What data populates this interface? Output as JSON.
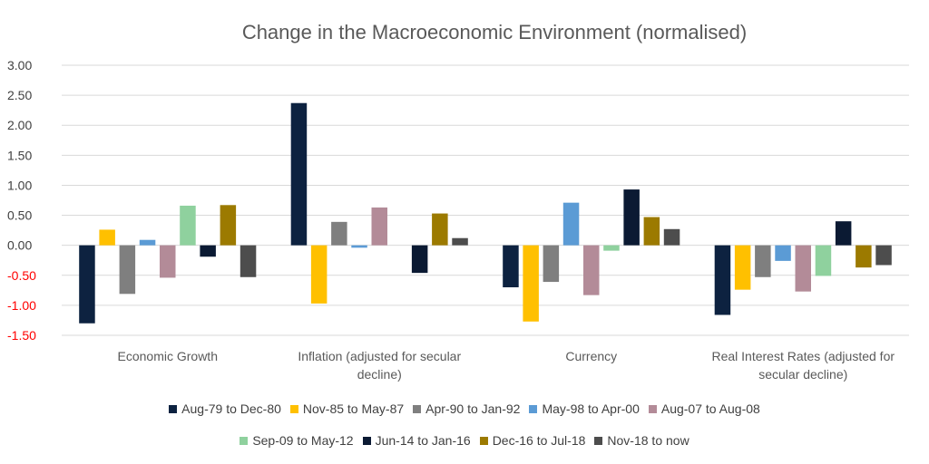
{
  "chart_data": {
    "type": "bar",
    "title": "Change in the Macroeconomic Environment (normalised)",
    "categories": [
      [
        "Economic Growth"
      ],
      [
        "Inflation (adjusted for secular",
        "decline)"
      ],
      [
        "Currency"
      ],
      [
        "Real Interest Rates (adjusted for",
        "secular decline)"
      ]
    ],
    "ylim": [
      -1.5,
      3.0
    ],
    "yticks": [
      "3.00",
      "2.50",
      "2.00",
      "1.50",
      "1.00",
      "0.50",
      "0.00",
      "-0.50",
      "-1.00",
      "-1.50"
    ],
    "ytick_values": [
      3.0,
      2.5,
      2.0,
      1.5,
      1.0,
      0.5,
      0.0,
      -0.5,
      -1.0,
      -1.5
    ],
    "ytick_colors": {
      "positive": "#404040",
      "negative": "#ff0000"
    },
    "grid": true,
    "legend_position": "bottom",
    "series": [
      {
        "name": "Aug-79 to Dec-80",
        "color": "#0d2240",
        "values": [
          -1.3,
          2.37,
          -0.7,
          -1.16
        ]
      },
      {
        "name": "Nov-85 to May-87",
        "color": "#ffc000",
        "values": [
          0.26,
          -0.97,
          -1.27,
          -0.74
        ]
      },
      {
        "name": "Apr-90 to Jan-92",
        "color": "#7f7f7f",
        "values": [
          -0.81,
          0.39,
          -0.61,
          -0.53
        ]
      },
      {
        "name": "May-98 to Apr-00",
        "color": "#5b9bd5",
        "values": [
          0.09,
          -0.04,
          0.71,
          -0.26
        ]
      },
      {
        "name": "Aug-07 to Aug-08",
        "color": "#b38b98",
        "values": [
          -0.54,
          0.63,
          -0.83,
          -0.77
        ]
      },
      {
        "name": "Sep-09 to May-12",
        "color": "#8fd19e",
        "values": [
          0.66,
          0.0,
          -0.09,
          -0.51
        ]
      },
      {
        "name": "Jun-14 to Jan-16",
        "color": "#0b1a33",
        "values": [
          -0.19,
          -0.46,
          0.93,
          0.4
        ]
      },
      {
        "name": "Dec-16 to Jul-18",
        "color": "#9c7a00",
        "values": [
          0.67,
          0.53,
          0.47,
          -0.37
        ]
      },
      {
        "name": "Nov-18 to now",
        "color": "#4d4d4d",
        "values": [
          -0.53,
          0.12,
          0.27,
          -0.33
        ]
      }
    ]
  }
}
